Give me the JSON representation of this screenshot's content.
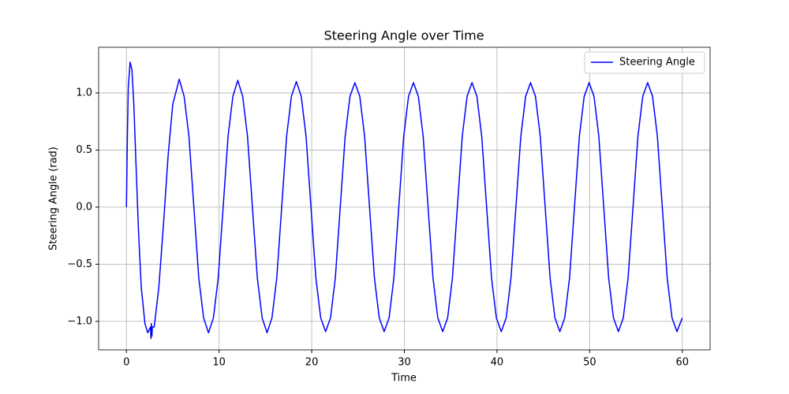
{
  "chart_data": {
    "type": "line",
    "title": "Steering Angle over Time",
    "x_label": "Time",
    "y_label": "Steering Angle (rad)",
    "x": [
      0,
      0.1,
      0.2,
      0.4,
      0.6,
      0.8,
      1.0,
      1.3,
      1.6,
      2.0,
      2.3,
      2.6,
      2.65,
      2.7,
      2.75,
      2.8,
      3.0,
      3.5,
      4.0,
      4.5,
      5.0,
      5.7,
      6.23,
      6.75,
      7.28,
      7.81,
      8.33,
      8.86,
      9.39,
      9.91,
      10.44,
      10.97,
      11.49,
      12.02,
      12.55,
      13.07,
      13.6,
      14.13,
      14.65,
      15.18,
      15.71,
      16.23,
      16.76,
      17.29,
      17.81,
      18.34,
      18.87,
      19.39,
      19.92,
      20.45,
      20.97,
      21.5,
      22.03,
      22.55,
      23.08,
      23.61,
      24.13,
      24.66,
      25.19,
      25.71,
      26.24,
      26.77,
      27.29,
      27.82,
      28.35,
      28.87,
      29.4,
      29.93,
      30.45,
      30.98,
      31.51,
      32.03,
      32.56,
      33.09,
      33.61,
      34.14,
      34.67,
      35.19,
      35.72,
      36.25,
      36.77,
      37.3,
      37.83,
      38.35,
      38.88,
      39.41,
      39.93,
      40.46,
      40.99,
      41.51,
      42.04,
      42.57,
      43.09,
      43.62,
      44.15,
      44.67,
      45.2,
      45.73,
      46.25,
      46.78,
      47.31,
      47.83,
      48.36,
      48.89,
      49.41,
      49.94,
      50.47,
      50.99,
      51.52,
      52.05,
      52.57,
      53.1,
      53.63,
      54.15,
      54.68,
      55.21,
      55.73,
      56.26,
      56.79,
      57.31,
      57.84,
      58.37,
      58.89,
      59.42,
      60.0
    ],
    "series": [
      {
        "name": "Steering Angle",
        "color": "#0000ff",
        "values": [
          0,
          0.6,
          1.05,
          1.27,
          1.2,
          0.9,
          0.45,
          -0.2,
          -0.7,
          -1.02,
          -1.1,
          -1.05,
          -1.15,
          -1.02,
          -1.13,
          -1.05,
          -1.05,
          -0.7,
          -0.15,
          0.45,
          0.9,
          1.12,
          0.97,
          0.62,
          0,
          -0.62,
          -0.97,
          -1.1,
          -0.97,
          -0.62,
          0,
          0.62,
          0.97,
          1.11,
          0.97,
          0.62,
          0,
          -0.62,
          -0.97,
          -1.1,
          -0.97,
          -0.62,
          0,
          0.62,
          0.97,
          1.1,
          0.97,
          0.62,
          0,
          -0.62,
          -0.97,
          -1.09,
          -0.97,
          -0.62,
          0,
          0.62,
          0.97,
          1.09,
          0.97,
          0.62,
          0,
          -0.62,
          -0.97,
          -1.09,
          -0.97,
          -0.62,
          0,
          0.62,
          0.97,
          1.09,
          0.97,
          0.62,
          0,
          -0.62,
          -0.97,
          -1.09,
          -0.97,
          -0.62,
          0,
          0.62,
          0.97,
          1.09,
          0.97,
          0.62,
          0,
          -0.62,
          -0.97,
          -1.09,
          -0.97,
          -0.62,
          0,
          0.62,
          0.97,
          1.09,
          0.97,
          0.62,
          0,
          -0.62,
          -0.97,
          -1.09,
          -0.97,
          -0.62,
          0,
          0.62,
          0.97,
          1.09,
          0.97,
          0.62,
          0,
          -0.62,
          -0.97,
          -1.09,
          -0.97,
          -0.62,
          0,
          0.62,
          0.97,
          1.09,
          0.97,
          0.62,
          0,
          -0.62,
          -0.97,
          -1.09,
          -0.97
        ]
      }
    ],
    "xlim": [
      -3,
      63
    ],
    "ylim": [
      -1.25,
      1.4
    ],
    "xticks": [
      0,
      10,
      20,
      30,
      40,
      50,
      60
    ],
    "yticks": [
      {
        "value": -1,
        "label": "−1.0"
      },
      {
        "value": -0.5,
        "label": "−0.5"
      },
      {
        "value": 0,
        "label": "0.0"
      },
      0.5,
      {
        "value": 1,
        "label": "1.0"
      }
    ],
    "grid": true,
    "legend": "upper right"
  }
}
